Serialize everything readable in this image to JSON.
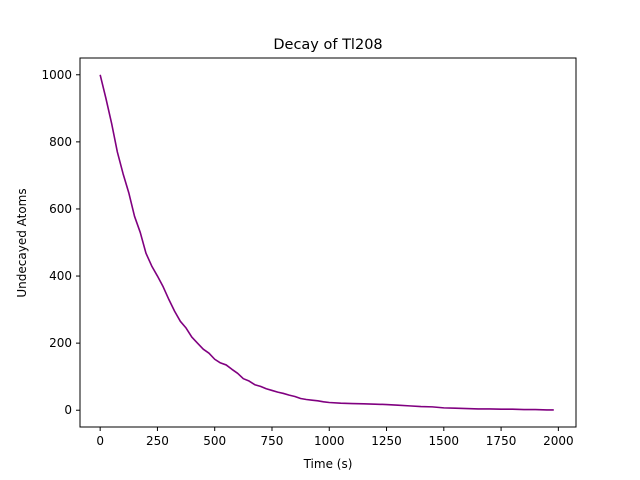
{
  "chart_data": {
    "type": "line",
    "title": "Decay of Tl208",
    "xlabel": "Time (s)",
    "ylabel": "Undecayed Atoms",
    "xlim": [
      -88,
      2077
    ],
    "ylim": [
      -50,
      1050
    ],
    "xticks": [
      0,
      250,
      500,
      750,
      1000,
      1250,
      1500,
      1750,
      2000
    ],
    "yticks": [
      0,
      200,
      400,
      600,
      800,
      1000
    ],
    "grid": false,
    "legend": "none",
    "series": [
      {
        "color": "#800080",
        "x": [
          0,
          25,
          50,
          75,
          100,
          125,
          150,
          175,
          200,
          225,
          250,
          275,
          300,
          325,
          350,
          375,
          400,
          425,
          450,
          475,
          500,
          525,
          550,
          575,
          600,
          625,
          650,
          675,
          700,
          725,
          750,
          775,
          800,
          825,
          850,
          875,
          900,
          925,
          950,
          975,
          1000,
          1050,
          1100,
          1150,
          1200,
          1250,
          1300,
          1350,
          1400,
          1450,
          1500,
          1550,
          1600,
          1650,
          1700,
          1750,
          1800,
          1850,
          1900,
          1950,
          1980
        ],
        "y": [
          1000,
          930,
          855,
          770,
          705,
          648,
          578,
          530,
          468,
          430,
          400,
          368,
          330,
          295,
          265,
          245,
          218,
          200,
          182,
          170,
          152,
          141,
          135,
          122,
          110,
          94,
          87,
          76,
          71,
          64,
          59,
          54,
          50,
          45,
          41,
          35,
          32,
          30,
          28,
          25,
          23,
          21,
          20,
          19,
          18,
          17,
          15,
          13,
          11,
          10,
          7,
          6,
          5,
          4,
          4,
          3,
          3,
          2,
          2,
          1,
          1
        ]
      }
    ]
  }
}
